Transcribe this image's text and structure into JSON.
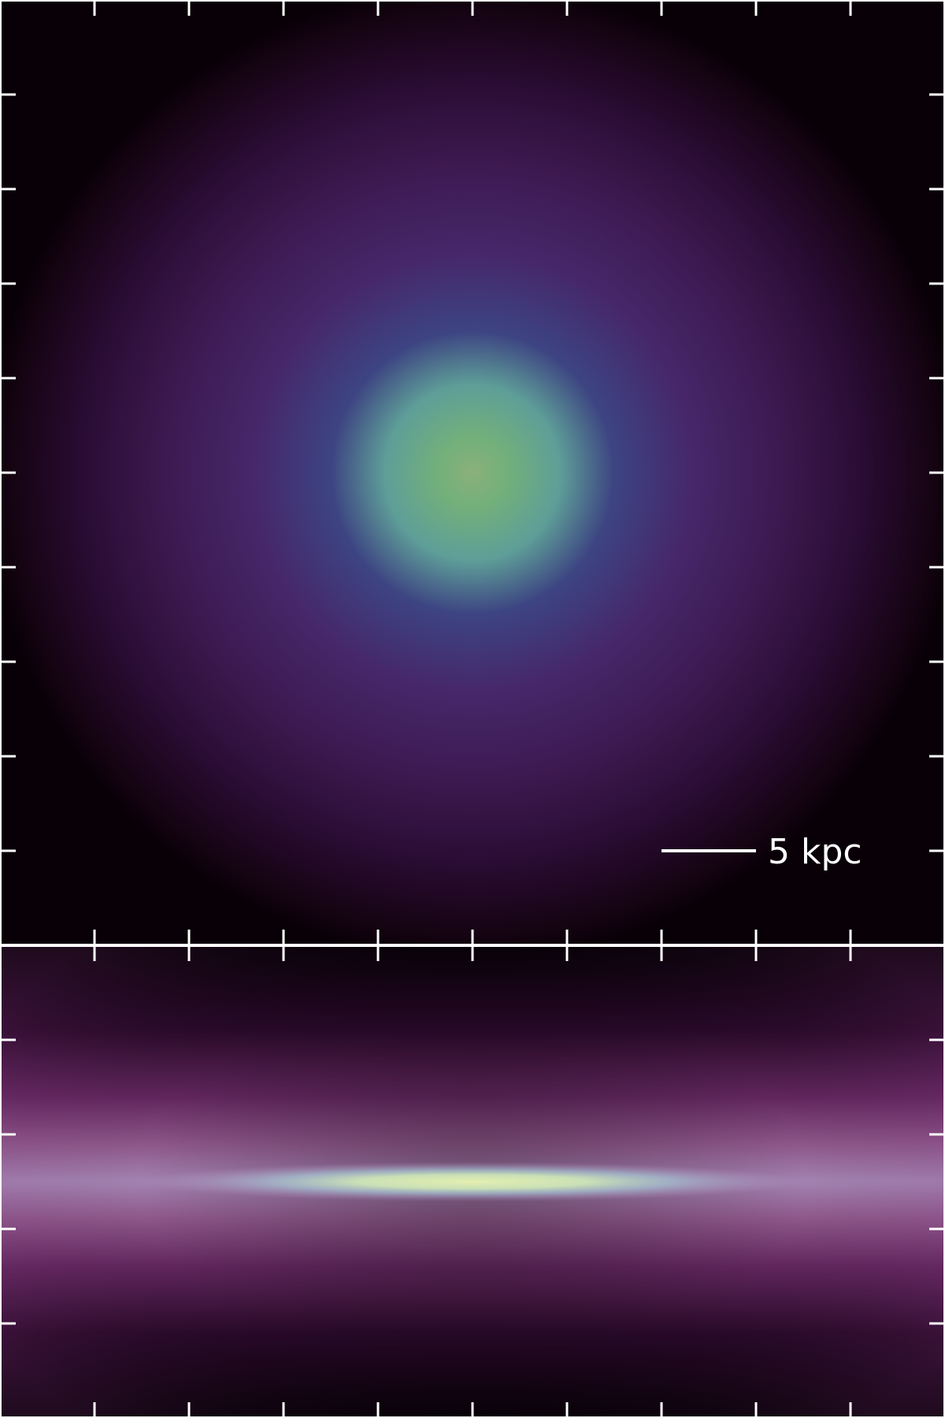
{
  "scalebar": {
    "label": "5 kpc",
    "color": "#ffffff"
  },
  "colors": {
    "tick": "#ffffff",
    "face_on_core": "#86b87a",
    "face_on_mid": "#3f3f82",
    "face_on_outer": "#45215c",
    "edge_on_plane": "#d8eaa8",
    "edge_on_glow": "#b48fc2",
    "background_dark": "#050005"
  },
  "panels": [
    {
      "name": "face-on-view",
      "description_kind": "density projection"
    },
    {
      "name": "edge-on-view",
      "description_kind": "density projection"
    }
  ]
}
